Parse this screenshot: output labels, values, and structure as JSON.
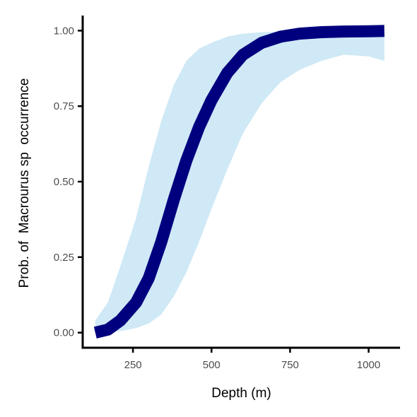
{
  "chart_data": {
    "type": "line",
    "xlabel": "Depth (m)",
    "ylabel": "Prob. of  Macrourus sp  occurrence",
    "xlim": [
      90,
      1100
    ],
    "ylim": [
      -0.05,
      1.05
    ],
    "x_ticks": [
      250,
      500,
      750,
      1000
    ],
    "x_tick_labels": [
      "250",
      "500",
      "750",
      "1000"
    ],
    "y_ticks": [
      0.0,
      0.25,
      0.5,
      0.75,
      1.0
    ],
    "y_tick_labels": [
      "0.00",
      "0.25",
      "0.50",
      "0.75",
      "1.00"
    ],
    "grid": false,
    "legend": "none",
    "series": [
      {
        "x": [
          130,
          170,
          210,
          260,
          300,
          340,
          380,
          420,
          460,
          500,
          550,
          600,
          660,
          720,
          780,
          850,
          920,
          1000,
          1050
        ],
        "y": [
          0.0,
          0.01,
          0.04,
          0.1,
          0.18,
          0.3,
          0.44,
          0.57,
          0.68,
          0.77,
          0.86,
          0.92,
          0.96,
          0.98,
          0.99,
          0.995,
          0.997,
          0.998,
          0.999
        ],
        "lower": [
          0.0,
          0.0,
          0.005,
          0.015,
          0.03,
          0.06,
          0.12,
          0.2,
          0.3,
          0.41,
          0.54,
          0.66,
          0.76,
          0.83,
          0.87,
          0.9,
          0.92,
          0.915,
          0.9
        ],
        "upper": [
          0.04,
          0.1,
          0.22,
          0.38,
          0.55,
          0.7,
          0.82,
          0.9,
          0.94,
          0.96,
          0.98,
          0.99,
          0.995,
          0.997,
          0.998,
          0.999,
          0.999,
          0.999,
          0.999
        ]
      }
    ],
    "colors": {
      "line": "#00007f",
      "band": "#cfe9f6",
      "axis": "#000000",
      "tick_label": "#4d4d4d"
    }
  }
}
